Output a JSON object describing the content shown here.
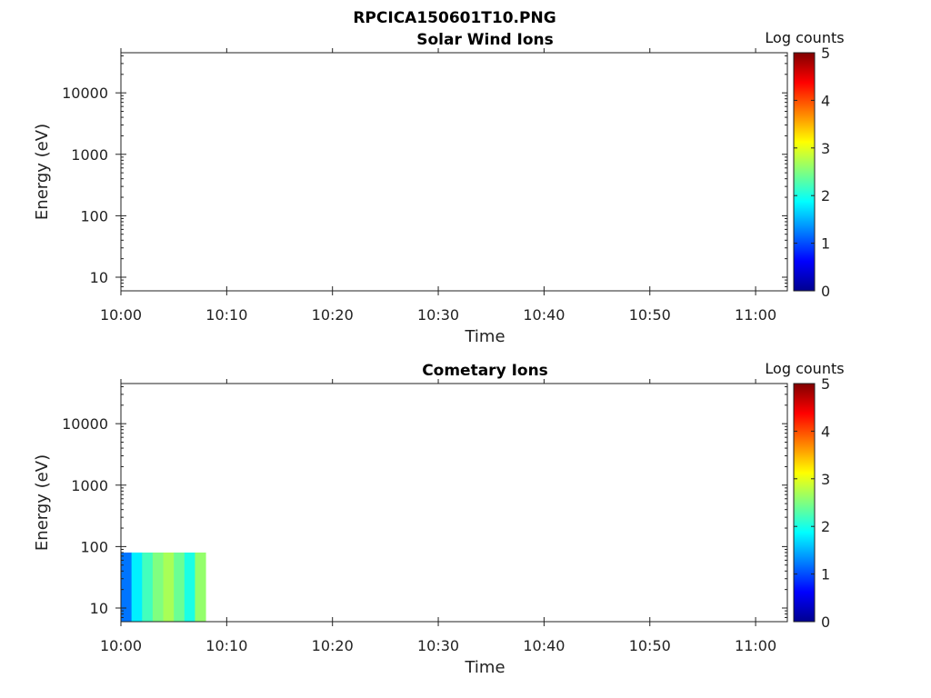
{
  "figure_title": "RPCICA150601T10.PNG",
  "colors": {
    "axis": "#222222",
    "background": "#ffffff",
    "colormap": "jet"
  },
  "chart_data": [
    {
      "type": "heatmap",
      "title": "Solar Wind Ions",
      "xlabel": "Time",
      "ylabel": "Energy (eV)",
      "x_ticks": [
        "10:00",
        "10:10",
        "10:20",
        "10:30",
        "10:40",
        "10:50",
        "11:00"
      ],
      "x_range": [
        "10:00",
        "11:03"
      ],
      "y_scale": "log",
      "y_ticks": [
        10,
        100,
        1000,
        10000
      ],
      "y_tick_labels": [
        "10",
        "100",
        "1000",
        "10000"
      ],
      "y_range": [
        6,
        45000
      ],
      "colorbar": {
        "label": "Log counts",
        "ticks": [
          "0",
          "1",
          "2",
          "3",
          "4",
          "5"
        ],
        "range": [
          0,
          5
        ]
      },
      "cells": []
    },
    {
      "type": "heatmap",
      "title": "Cometary Ions",
      "xlabel": "Time",
      "ylabel": "Energy (eV)",
      "x_ticks": [
        "10:00",
        "10:10",
        "10:20",
        "10:30",
        "10:40",
        "10:50",
        "11:00"
      ],
      "x_range": [
        "10:00",
        "11:03"
      ],
      "y_scale": "log",
      "y_ticks": [
        10,
        100,
        1000,
        10000
      ],
      "y_tick_labels": [
        "10",
        "100",
        "1000",
        "10000"
      ],
      "y_range": [
        6,
        45000
      ],
      "colorbar": {
        "label": "Log counts",
        "ticks": [
          "0",
          "1",
          "2",
          "3",
          "4",
          "5"
        ],
        "range": [
          0,
          5
        ]
      },
      "data_time_span": [
        "10:00",
        "10:08"
      ],
      "data_energy_span_eV": [
        6,
        80
      ],
      "cells": [
        {
          "t": "10:00",
          "e": [
            6,
            80
          ],
          "v": 1.2
        },
        {
          "t": "10:01",
          "e": [
            6,
            80
          ],
          "v": 1.8
        },
        {
          "t": "10:02",
          "e": [
            6,
            80
          ],
          "v": 2.2
        },
        {
          "t": "10:03",
          "e": [
            6,
            80
          ],
          "v": 2.5
        },
        {
          "t": "10:04",
          "e": [
            6,
            80
          ],
          "v": 2.7
        },
        {
          "t": "10:05",
          "e": [
            6,
            80
          ],
          "v": 2.4
        },
        {
          "t": "10:06",
          "e": [
            6,
            80
          ],
          "v": 2.0
        },
        {
          "t": "10:07",
          "e": [
            6,
            80
          ],
          "v": 2.6
        }
      ]
    }
  ]
}
